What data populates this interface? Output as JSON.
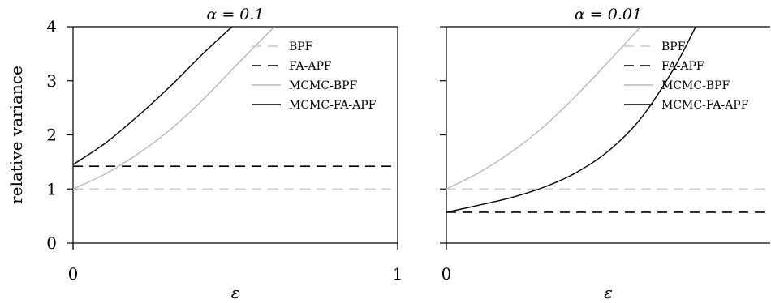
{
  "chart_data": [
    {
      "type": "line",
      "title": "α = 0.1",
      "xlabel": "ε",
      "ylabel": "relative variance",
      "xlim": [
        0,
        1
      ],
      "ylim": [
        0,
        4
      ],
      "xticks": [
        "0",
        "1"
      ],
      "yticks": [
        "0",
        "1",
        "2",
        "3",
        "4"
      ],
      "grid": false,
      "legend_position": "top-right",
      "series": [
        {
          "name": "BPF",
          "style": "dashed",
          "color": "#c8c8c8",
          "x": [
            0,
            1
          ],
          "y": [
            1.0,
            1.0
          ]
        },
        {
          "name": "FA-APF",
          "style": "dashed",
          "color": "#000000",
          "x": [
            0,
            1
          ],
          "y": [
            1.42,
            1.42
          ]
        },
        {
          "name": "MCMC-BPF",
          "style": "solid",
          "color": "#b8b8b8",
          "x": [
            0,
            0.1,
            0.2,
            0.3,
            0.4,
            0.5,
            0.62
          ],
          "y": [
            1.0,
            1.28,
            1.65,
            2.1,
            2.65,
            3.27,
            4.0
          ]
        },
        {
          "name": "MCMC-FA-APF",
          "style": "solid",
          "color": "#000000",
          "x": [
            0,
            0.1,
            0.2,
            0.3,
            0.4,
            0.49
          ],
          "y": [
            1.45,
            1.85,
            2.35,
            2.9,
            3.5,
            4.0
          ]
        }
      ]
    },
    {
      "type": "line",
      "title": "α = 0.01",
      "xlabel": "ε",
      "ylabel": "",
      "xlim": [
        0,
        1
      ],
      "ylim": [
        0,
        4
      ],
      "xticks": [
        "0"
      ],
      "yticks": [],
      "grid": false,
      "legend_position": "top-right",
      "series": [
        {
          "name": "BPF",
          "style": "dashed",
          "color": "#c8c8c8",
          "x": [
            0,
            1
          ],
          "y": [
            1.0,
            1.0
          ]
        },
        {
          "name": "FA-APF",
          "style": "dashed",
          "color": "#000000",
          "x": [
            0,
            1
          ],
          "y": [
            0.57,
            0.57
          ]
        },
        {
          "name": "MCMC-BPF",
          "style": "solid",
          "color": "#b8b8b8",
          "x": [
            0,
            0.1,
            0.2,
            0.3,
            0.4,
            0.5,
            0.6
          ],
          "y": [
            1.0,
            1.3,
            1.68,
            2.15,
            2.72,
            3.35,
            4.0
          ]
        },
        {
          "name": "MCMC-FA-APF",
          "style": "solid",
          "color": "#000000",
          "x": [
            0,
            0.1,
            0.2,
            0.3,
            0.4,
            0.5,
            0.6,
            0.7,
            0.77
          ],
          "y": [
            0.57,
            0.7,
            0.84,
            1.03,
            1.3,
            1.7,
            2.3,
            3.2,
            4.0
          ]
        }
      ]
    }
  ]
}
